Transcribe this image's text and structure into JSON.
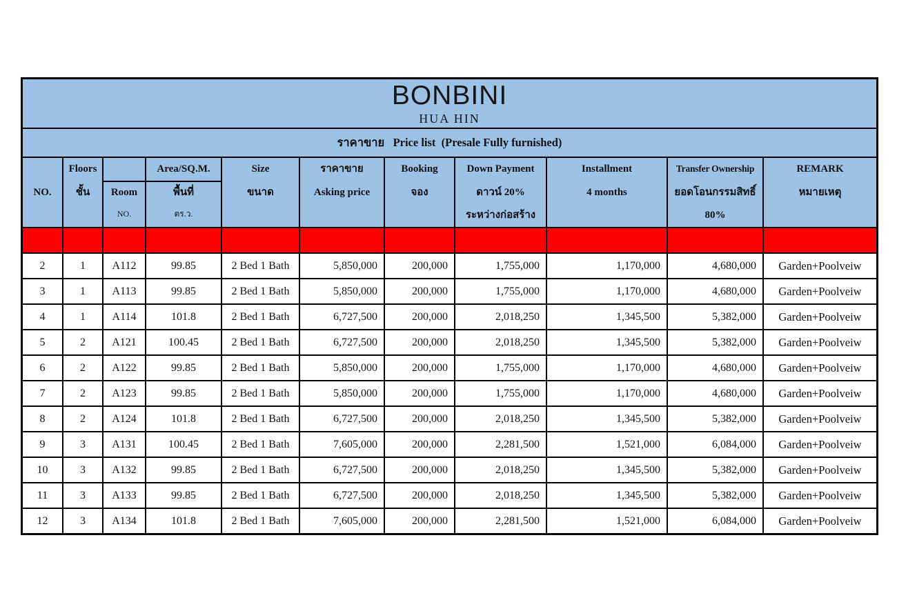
{
  "title": {
    "project": "BONBINI",
    "location": "HUA HIN"
  },
  "subtitle": "ราคาขาย   Price list  (Presale Fully furnished)",
  "colors": {
    "header_bg": "#9CC2E5",
    "highlight_row_bg": "#FF0000",
    "border": "#000000",
    "page_bg": "#FFFFFF"
  },
  "header": {
    "no": "NO.",
    "floors_en": "Floors",
    "floors_th": "ชั้น",
    "room_en": "Room",
    "room_sub": "NO.",
    "area_en": "Area/SQ.M.",
    "area_th": "พื้นที่",
    "area_sub": "ตร.ว.",
    "size_en": "Size",
    "size_th": "ขนาด",
    "asking_th": "ราคาขาย",
    "asking_en": "Asking price",
    "booking_en": "Booking",
    "booking_th": "จอง",
    "down_en": "Down Payment",
    "down_th1": "ดาวน์ 20%",
    "down_th2": "ระหว่างก่อสร้าง",
    "installment_en": "Installment",
    "installment_sub": "4 months",
    "transfer_en": "Transfer Ownership",
    "transfer_th": "ยอดโอนกรรมสิทธิ์",
    "transfer_sub": "80%",
    "remark_en": "REMARK",
    "remark_th": "หมายเหตุ"
  },
  "rows": [
    {
      "no": "2",
      "floor": "1",
      "room": "A112",
      "area": "99.85",
      "size": "2 Bed 1 Bath",
      "asking": "5,850,000",
      "booking": "200,000",
      "down": "1,755,000",
      "installment": "1,170,000",
      "transfer": "4,680,000",
      "remark": "Garden+Poolveiw"
    },
    {
      "no": "3",
      "floor": "1",
      "room": "A113",
      "area": "99.85",
      "size": "2 Bed 1 Bath",
      "asking": "5,850,000",
      "booking": "200,000",
      "down": "1,755,000",
      "installment": "1,170,000",
      "transfer": "4,680,000",
      "remark": "Garden+Poolveiw"
    },
    {
      "no": "4",
      "floor": "1",
      "room": "A114",
      "area": "101.8",
      "size": "2 Bed 1 Bath",
      "asking": "6,727,500",
      "booking": "200,000",
      "down": "2,018,250",
      "installment": "1,345,500",
      "transfer": "5,382,000",
      "remark": "Garden+Poolveiw"
    },
    {
      "no": "5",
      "floor": "2",
      "room": "A121",
      "area": "100.45",
      "size": "2 Bed 1 Bath",
      "asking": "6,727,500",
      "booking": "200,000",
      "down": "2,018,250",
      "installment": "1,345,500",
      "transfer": "5,382,000",
      "remark": "Garden+Poolveiw"
    },
    {
      "no": "6",
      "floor": "2",
      "room": "A122",
      "area": "99.85",
      "size": "2 Bed 1 Bath",
      "asking": "5,850,000",
      "booking": "200,000",
      "down": "1,755,000",
      "installment": "1,170,000",
      "transfer": "4,680,000",
      "remark": "Garden+Poolveiw"
    },
    {
      "no": "7",
      "floor": "2",
      "room": "A123",
      "area": "99.85",
      "size": "2 Bed 1 Bath",
      "asking": "5,850,000",
      "booking": "200,000",
      "down": "1,755,000",
      "installment": "1,170,000",
      "transfer": "4,680,000",
      "remark": "Garden+Poolveiw"
    },
    {
      "no": "8",
      "floor": "2",
      "room": "A124",
      "area": "101.8",
      "size": "2 Bed 1 Bath",
      "asking": "6,727,500",
      "booking": "200,000",
      "down": "2,018,250",
      "installment": "1,345,500",
      "transfer": "5,382,000",
      "remark": "Garden+Poolveiw"
    },
    {
      "no": "9",
      "floor": "3",
      "room": "A131",
      "area": "100.45",
      "size": "2 Bed 1 Bath",
      "asking": "7,605,000",
      "booking": "200,000",
      "down": "2,281,500",
      "installment": "1,521,000",
      "transfer": "6,084,000",
      "remark": "Garden+Poolveiw"
    },
    {
      "no": "10",
      "floor": "3",
      "room": "A132",
      "area": "99.85",
      "size": "2 Bed 1 Bath",
      "asking": "6,727,500",
      "booking": "200,000",
      "down": "2,018,250",
      "installment": "1,345,500",
      "transfer": "5,382,000",
      "remark": "Garden+Poolveiw"
    },
    {
      "no": "11",
      "floor": "3",
      "room": "A133",
      "area": "99.85",
      "size": "2 Bed 1 Bath",
      "asking": "6,727,500",
      "booking": "200,000",
      "down": "2,018,250",
      "installment": "1,345,500",
      "transfer": "5,382,000",
      "remark": "Garden+Poolveiw"
    },
    {
      "no": "12",
      "floor": "3",
      "room": "A134",
      "area": "101.8",
      "size": "2 Bed 1 Bath",
      "asking": "7,605,000",
      "booking": "200,000",
      "down": "2,281,500",
      "installment": "1,521,000",
      "transfer": "6,084,000",
      "remark": "Garden+Poolveiw"
    }
  ]
}
